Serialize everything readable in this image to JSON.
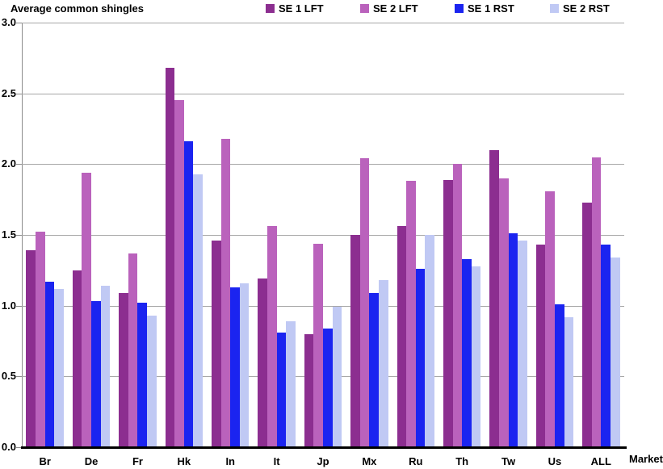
{
  "chart_data": {
    "type": "bar",
    "title": "Average common shingles",
    "xlabel": "Market",
    "categories": [
      "Br",
      "De",
      "Fr",
      "Hk",
      "In",
      "It",
      "Jp",
      "Mx",
      "Ru",
      "Th",
      "Tw",
      "Us",
      "ALL"
    ],
    "series": [
      {
        "name": "SE 1 LFT",
        "color": "#8C2E90",
        "values": [
          1.39,
          1.25,
          1.09,
          2.68,
          1.46,
          1.19,
          0.8,
          1.5,
          1.56,
          1.89,
          2.1,
          1.43,
          1.73
        ]
      },
      {
        "name": "SE 2 LFT",
        "color": "#BA62BC",
        "values": [
          1.52,
          1.94,
          1.37,
          2.45,
          2.18,
          1.56,
          1.44,
          2.04,
          1.88,
          2.0,
          1.9,
          1.81,
          2.05
        ]
      },
      {
        "name": "SE 1 RST",
        "color": "#1B24F0",
        "values": [
          1.17,
          1.03,
          1.02,
          2.16,
          1.13,
          0.81,
          0.84,
          1.09,
          1.26,
          1.33,
          1.51,
          1.01,
          1.43
        ]
      },
      {
        "name": "SE 2 RST",
        "color": "#C0C9F4",
        "values": [
          1.12,
          1.14,
          0.93,
          1.93,
          1.16,
          0.89,
          0.99,
          1.18,
          1.5,
          1.28,
          1.46,
          0.92,
          1.34
        ]
      }
    ],
    "ylim": [
      0,
      3.0
    ],
    "ytick_step": 0.5,
    "y_tick_labels": [
      "3.0",
      "2.5",
      "2.0",
      "1.5",
      "1.0",
      "0.5",
      "0.0"
    ],
    "grid": "horizontal",
    "legend_position": "top",
    "gridline_color": "#A6A6A6",
    "axis_color": "#000000"
  }
}
